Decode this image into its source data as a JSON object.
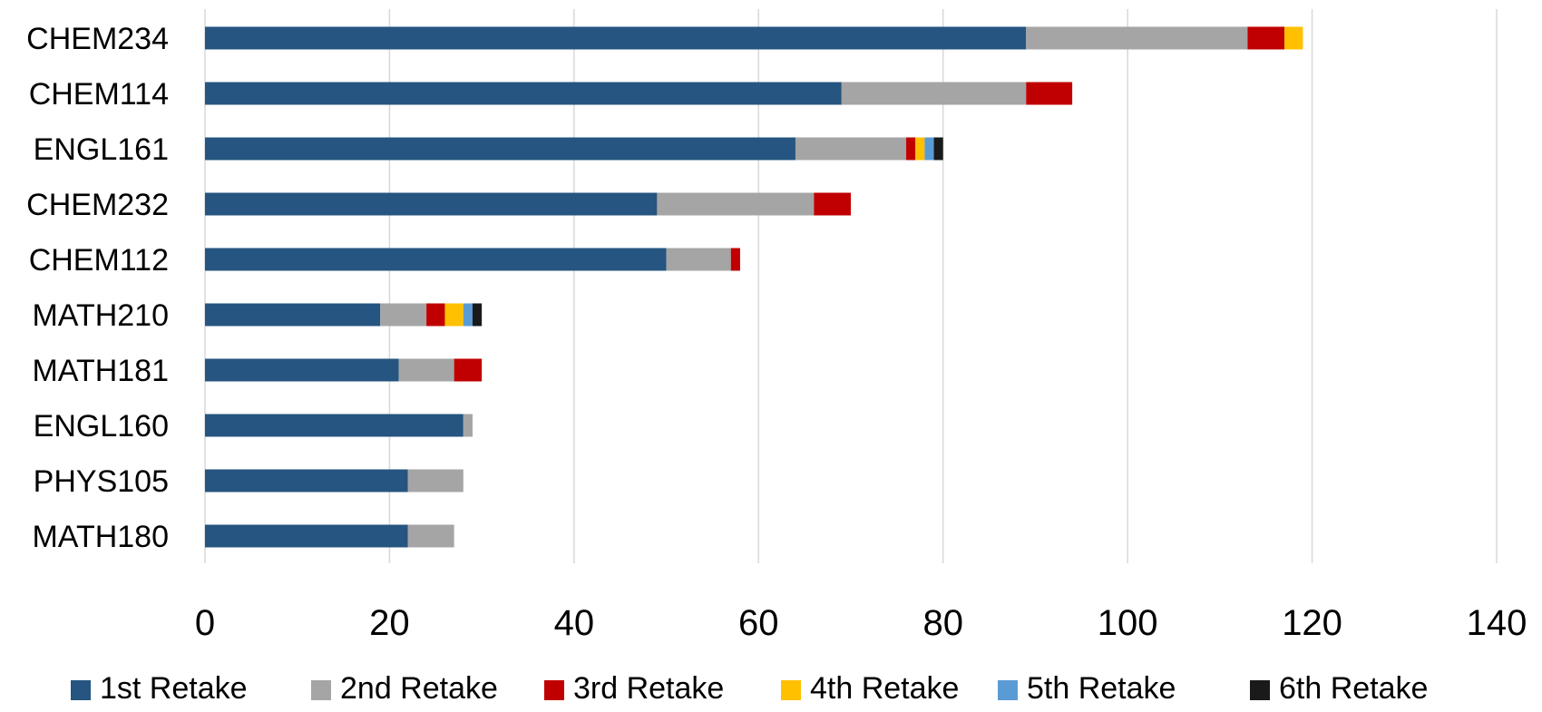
{
  "chart_data": {
    "type": "bar",
    "orientation": "horizontal",
    "stacked": true,
    "title": "",
    "xlabel": "",
    "ylabel": "",
    "xlim": [
      0,
      140
    ],
    "x_ticks": [
      0,
      20,
      40,
      60,
      80,
      100,
      120,
      140
    ],
    "grid": "vertical",
    "legend_position": "bottom",
    "categories": [
      "CHEM234",
      "CHEM114",
      "ENGL161",
      "CHEM232",
      "CHEM112",
      "MATH210",
      "MATH181",
      "ENGL160",
      "PHYS105",
      "MATH180"
    ],
    "series": [
      {
        "name": "1st Retake",
        "color": "#255580",
        "values": [
          89,
          69,
          64,
          49,
          50,
          19,
          21,
          28,
          22,
          22
        ]
      },
      {
        "name": "2nd Retake",
        "color": "#a5a5a5",
        "values": [
          24,
          20,
          12,
          17,
          7,
          5,
          6,
          1,
          6,
          5
        ]
      },
      {
        "name": "3rd Retake",
        "color": "#c00000",
        "values": [
          4,
          5,
          1,
          4,
          1,
          2,
          3,
          0,
          0,
          0
        ]
      },
      {
        "name": "4th Retake",
        "color": "#ffc000",
        "values": [
          2,
          0,
          1,
          0,
          0,
          2,
          0,
          0,
          0,
          0
        ]
      },
      {
        "name": "5th Retake",
        "color": "#5b9bd5",
        "values": [
          0,
          0,
          1,
          0,
          0,
          1,
          0,
          0,
          0,
          0
        ]
      },
      {
        "name": "6th Retake",
        "color": "#1a1a1a",
        "values": [
          0,
          0,
          1,
          0,
          0,
          1,
          0,
          0,
          0,
          0
        ]
      }
    ]
  }
}
